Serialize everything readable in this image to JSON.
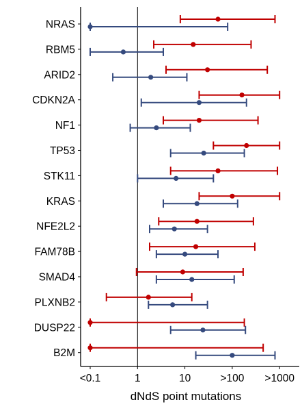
{
  "chart_data": {
    "type": "forest",
    "xlabel": "dNdS point mutations",
    "x_scale": "log",
    "x_ticks": [
      {
        "value": 0.1,
        "label": "<0.1"
      },
      {
        "value": 1,
        "label": "1"
      },
      {
        "value": 10,
        "label": "10"
      },
      {
        "value": 100,
        "label": ">100"
      },
      {
        "value": 1000,
        "label": ">1000"
      }
    ],
    "reference_line": 1,
    "genes": [
      "NRAS",
      "RBM5",
      "ARID2",
      "CDKN2A",
      "NF1",
      "TP53",
      "STK11",
      "KRAS",
      "NFE2L2",
      "FAM78B",
      "SMAD4",
      "PLXNB2",
      "DUSP22",
      "B2M"
    ],
    "series": [
      {
        "color": "#c00000",
        "points": [
          {
            "gene": "NRAS",
            "estimate": 50,
            "low": 8,
            "high": 800
          },
          {
            "gene": "RBM5",
            "estimate": 15,
            "low": 2.2,
            "high": 250
          },
          {
            "gene": "ARID2",
            "estimate": 30,
            "low": 4,
            "high": 550
          },
          {
            "gene": "CDKN2A",
            "estimate": 160,
            "low": 20,
            "high": 1000
          },
          {
            "gene": "NF1",
            "estimate": 20,
            "low": 3.5,
            "high": 350
          },
          {
            "gene": "TP53",
            "estimate": 200,
            "low": 40,
            "high": 1000
          },
          {
            "gene": "STK11",
            "estimate": 50,
            "low": 5,
            "high": 900
          },
          {
            "gene": "KRAS",
            "estimate": 100,
            "low": 20,
            "high": 1000
          },
          {
            "gene": "NFE2L2",
            "estimate": 18,
            "low": 2.8,
            "high": 280
          },
          {
            "gene": "FAM78B",
            "estimate": 17,
            "low": 1.8,
            "high": 300
          },
          {
            "gene": "SMAD4",
            "estimate": 9,
            "low": 0.95,
            "high": 170
          },
          {
            "gene": "PLXNB2",
            "estimate": 1.7,
            "low": 0.22,
            "high": 14
          },
          {
            "gene": "DUSP22",
            "estimate": 0.1,
            "low": 0.1,
            "high": 180
          },
          {
            "gene": "B2M",
            "estimate": 0.1,
            "low": 0.1,
            "high": 450
          }
        ]
      },
      {
        "color": "#354a7e",
        "points": [
          {
            "gene": "NRAS",
            "estimate": 0.1,
            "low": 0.1,
            "high": 80
          },
          {
            "gene": "RBM5",
            "estimate": 0.5,
            "low": 0.1,
            "high": 3.5
          },
          {
            "gene": "ARID2",
            "estimate": 1.9,
            "low": 0.3,
            "high": 11
          },
          {
            "gene": "CDKN2A",
            "estimate": 20,
            "low": 1.2,
            "high": 200
          },
          {
            "gene": "NF1",
            "estimate": 2.5,
            "low": 0.7,
            "high": 13
          },
          {
            "gene": "TP53",
            "estimate": 25,
            "low": 5,
            "high": 180
          },
          {
            "gene": "STK11",
            "estimate": 6.5,
            "low": 1.0,
            "high": 40
          },
          {
            "gene": "KRAS",
            "estimate": 18,
            "low": 3.5,
            "high": 130
          },
          {
            "gene": "NFE2L2",
            "estimate": 6,
            "low": 1.8,
            "high": 30
          },
          {
            "gene": "FAM78B",
            "estimate": 10,
            "low": 2.5,
            "high": 50
          },
          {
            "gene": "SMAD4",
            "estimate": 14,
            "low": 2.5,
            "high": 110
          },
          {
            "gene": "PLXNB2",
            "estimate": 5.5,
            "low": 1.7,
            "high": 30
          },
          {
            "gene": "DUSP22",
            "estimate": 24,
            "low": 5,
            "high": 190
          },
          {
            "gene": "B2M",
            "estimate": 100,
            "low": 17,
            "high": 800
          }
        ]
      }
    ]
  }
}
